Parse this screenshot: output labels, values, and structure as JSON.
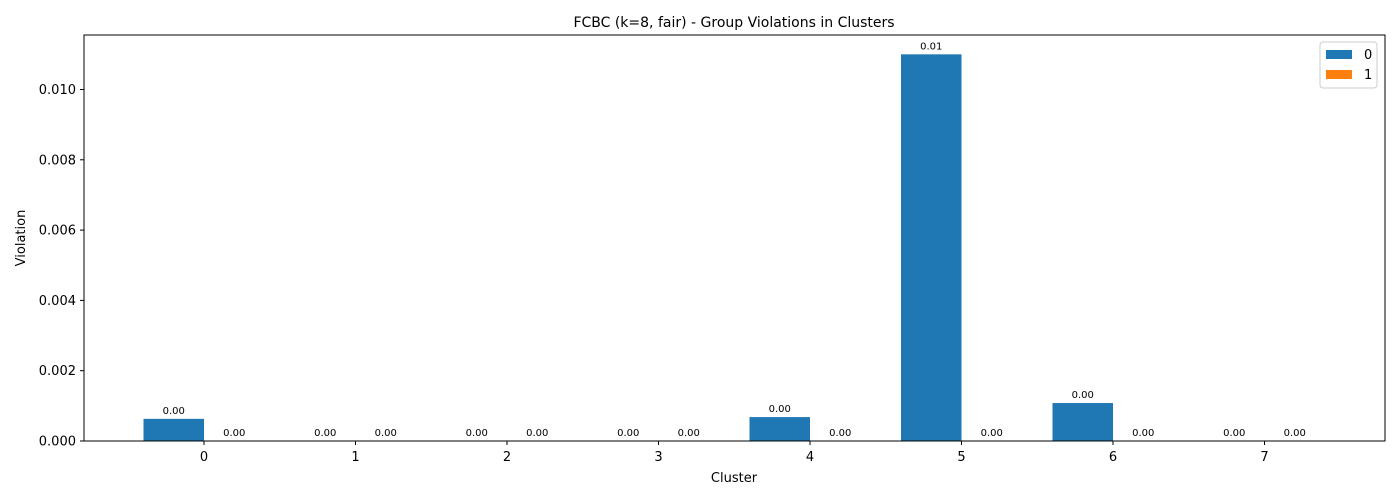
{
  "chart_data": {
    "type": "bar",
    "title": "FCBC (k=8, fair) - Group Violations in Clusters",
    "xlabel": "Cluster",
    "ylabel": "Violation",
    "categories": [
      "0",
      "1",
      "2",
      "3",
      "4",
      "5",
      "6",
      "7"
    ],
    "series": [
      {
        "name": "0",
        "color": "#1f77b4",
        "values": [
          0.00063,
          0.0,
          0.0,
          0.0,
          0.00068,
          0.011,
          0.00108,
          0.0
        ],
        "labels": [
          "0.00",
          "0.00",
          "0.00",
          "0.00",
          "0.00",
          "0.01",
          "0.00",
          "0.00"
        ]
      },
      {
        "name": "1",
        "color": "#ff7f0e",
        "values": [
          0,
          0,
          0,
          0,
          0,
          0,
          0,
          0
        ],
        "labels": [
          "0.00",
          "0.00",
          "0.00",
          "0.00",
          "0.00",
          "0.00",
          "0.00",
          "0.00"
        ]
      }
    ],
    "ylim": [
      0,
      0.01155
    ],
    "yticks": [
      0.0,
      0.002,
      0.004,
      0.006,
      0.008,
      0.01
    ],
    "ytick_labels": [
      "0.000",
      "0.002",
      "0.004",
      "0.006",
      "0.008",
      "0.010"
    ],
    "grid": false,
    "legend_position": "top-right"
  }
}
